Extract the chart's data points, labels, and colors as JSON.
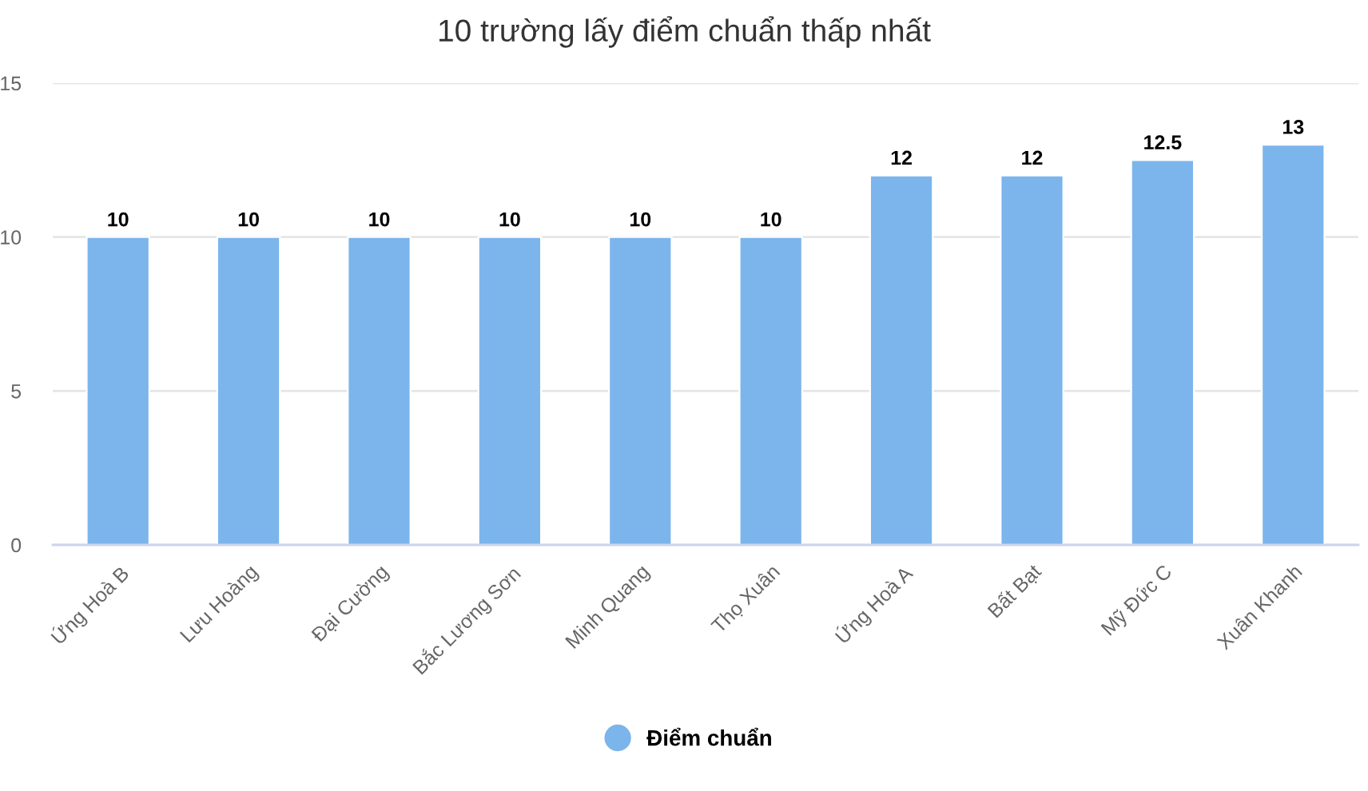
{
  "chart_data": {
    "type": "bar",
    "title": "10 trường lấy điểm chuẩn thấp nhất",
    "categories": [
      "Ứng Hoà B",
      "Lưu Hoàng",
      "Đại Cường",
      "Bắc Lương Sơn",
      "Minh Quang",
      "Thọ Xuân",
      "Ứng Hoà A",
      "Bất Bạt",
      "Mỹ Đức C",
      "Xuân Khanh"
    ],
    "series": [
      {
        "name": "Điểm chuẩn",
        "color": "#7cb5ec",
        "values": [
          10,
          10,
          10,
          10,
          10,
          10,
          12,
          12,
          12.5,
          13
        ]
      }
    ],
    "ylim": [
      0,
      15
    ],
    "yticks": [
      0,
      5,
      10,
      15
    ],
    "grid": "y",
    "legend": "bottom",
    "data_labels": true
  }
}
